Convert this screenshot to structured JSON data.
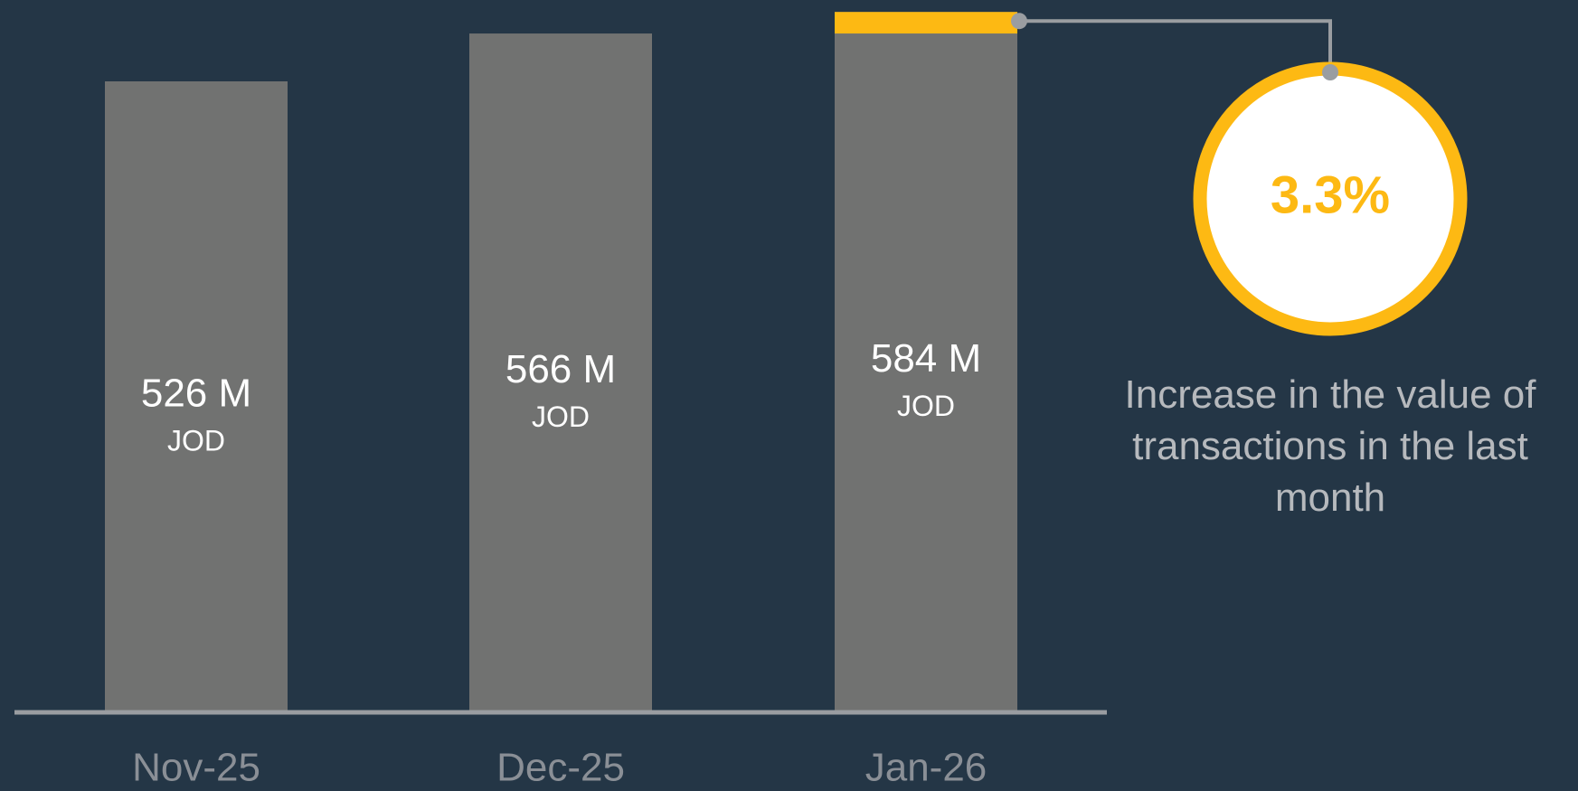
{
  "chart_data": {
    "type": "bar",
    "categories": [
      "Nov-25",
      "Dec-25",
      "Jan-26"
    ],
    "values": [
      526,
      566,
      584
    ],
    "value_labels": [
      "526 M",
      "566 M",
      "584 M"
    ],
    "unit": "JOD",
    "color": "#717271",
    "highlight_color": "#fdb913",
    "ylim": [
      0,
      594
    ],
    "callout": {
      "value": 3.3,
      "label": "3.3%",
      "text": "Increase in the value of transactions in the last month"
    }
  }
}
